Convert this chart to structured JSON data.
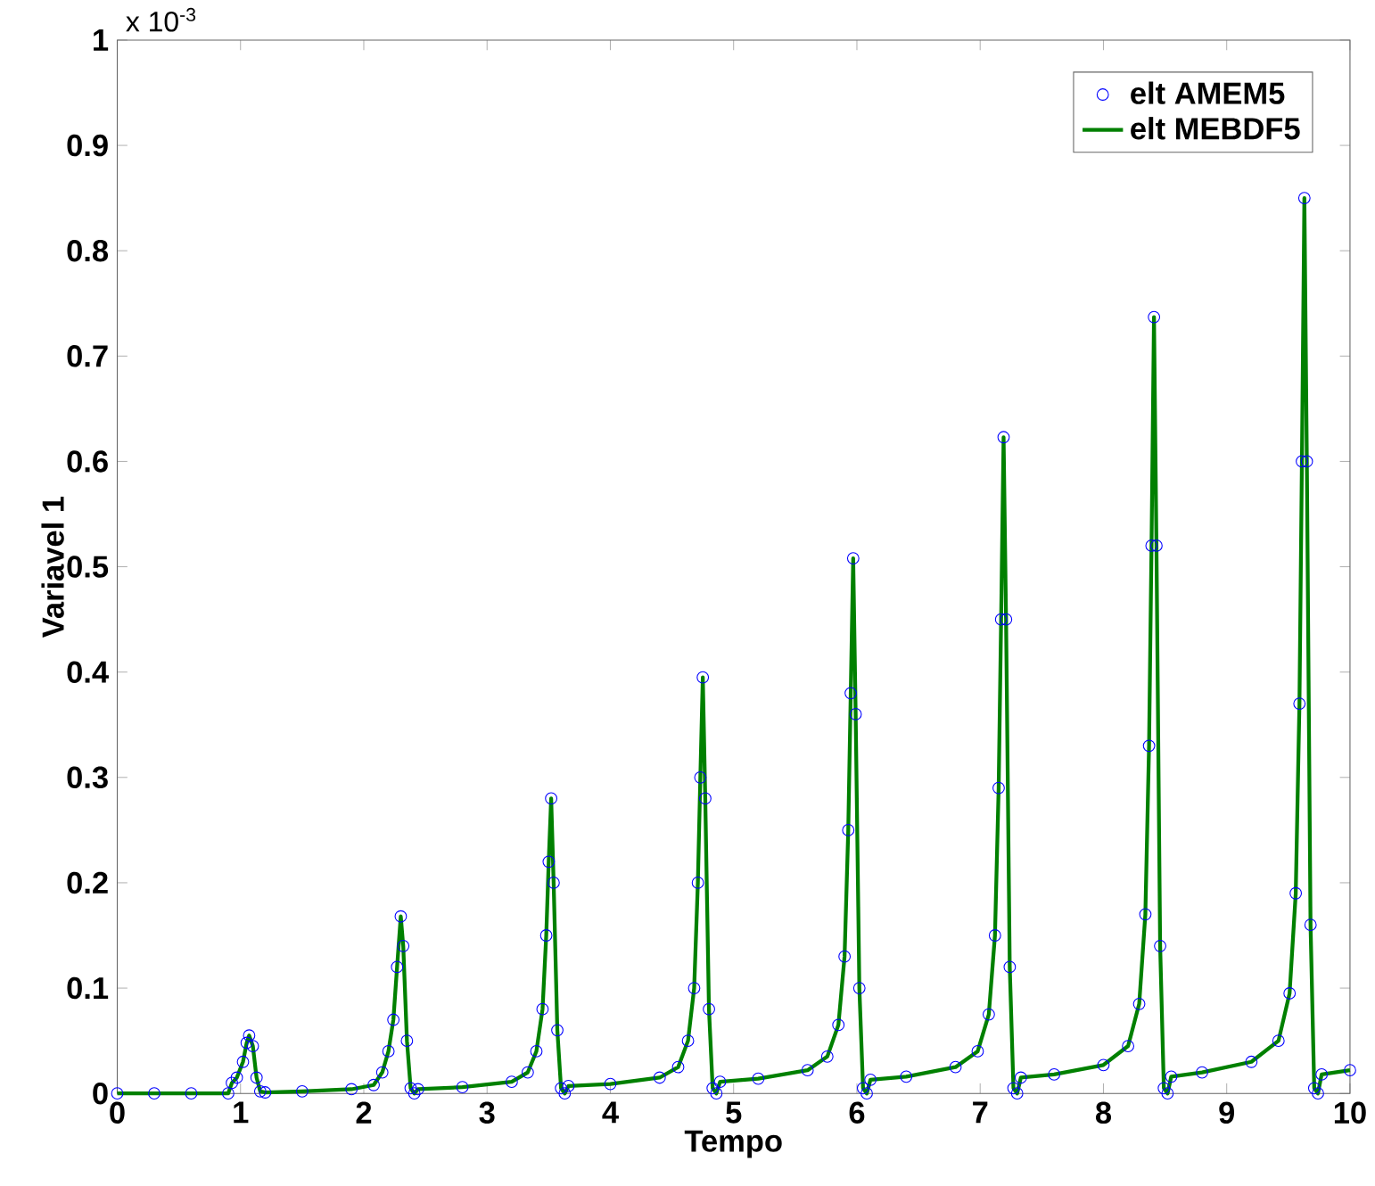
{
  "chart_data": {
    "type": "line",
    "xlabel": "Tempo",
    "ylabel": "Variavel 1",
    "annotations": [
      "x 10$^{-3}$"
    ],
    "xlim": [
      0,
      10
    ],
    "xticks": [
      0,
      1,
      2,
      3,
      4,
      5,
      6,
      7,
      8,
      9,
      10
    ],
    "ylim": [
      0,
      1
    ],
    "yticks": [
      0,
      0.1,
      0.2,
      0.3,
      0.4,
      0.5,
      0.6,
      0.7,
      0.8,
      0.9,
      1
    ],
    "legend": "top right",
    "grid": false,
    "x": [
      0,
      0.3,
      0.6,
      0.9,
      0.93,
      0.97,
      1.02,
      1.05,
      1.07,
      1.1,
      1.13,
      1.16,
      1.2,
      1.5,
      1.9,
      2.08,
      2.15,
      2.2,
      2.24,
      2.27,
      2.3,
      2.32,
      2.35,
      2.38,
      2.41,
      2.44,
      2.8,
      3.2,
      3.33,
      3.4,
      3.45,
      3.48,
      3.5,
      3.52,
      3.54,
      3.57,
      3.6,
      3.63,
      3.66,
      4.0,
      4.4,
      4.55,
      4.63,
      4.68,
      4.71,
      4.73,
      4.75,
      4.77,
      4.8,
      4.83,
      4.86,
      4.89,
      5.2,
      5.6,
      5.76,
      5.85,
      5.9,
      5.93,
      5.95,
      5.97,
      5.99,
      6.02,
      6.05,
      6.08,
      6.11,
      6.4,
      6.8,
      6.98,
      7.07,
      7.12,
      7.15,
      7.17,
      7.19,
      7.21,
      7.24,
      7.27,
      7.3,
      7.33,
      7.6,
      8.0,
      8.2,
      8.29,
      8.34,
      8.37,
      8.39,
      8.41,
      8.43,
      8.46,
      8.49,
      8.52,
      8.55,
      8.8,
      9.2,
      9.42,
      9.51,
      9.56,
      9.59,
      9.61,
      9.63,
      9.65,
      9.68,
      9.71,
      9.74,
      9.77,
      10
    ],
    "series": [
      {
        "name": "elt AMEM5",
        "type": "scatter",
        "marker": "circle",
        "color": "#0000ff",
        "values": [
          0,
          0,
          0,
          0,
          0.01,
          0.015,
          0.03,
          0.048,
          0.055,
          0.045,
          0.015,
          0.002,
          0.001,
          0.002,
          0.004,
          0.008,
          0.02,
          0.04,
          0.07,
          0.12,
          0.168,
          0.14,
          0.05,
          0.005,
          0,
          0.004,
          0.006,
          0.011,
          0.02,
          0.04,
          0.08,
          0.15,
          0.22,
          0.28,
          0.2,
          0.06,
          0.005,
          0,
          0.007,
          0.009,
          0.015,
          0.025,
          0.05,
          0.1,
          0.2,
          0.3,
          0.395,
          0.28,
          0.08,
          0.005,
          0,
          0.011,
          0.014,
          0.022,
          0.035,
          0.065,
          0.13,
          0.25,
          0.38,
          0.508,
          0.36,
          0.1,
          0.005,
          0,
          0.013,
          0.016,
          0.025,
          0.04,
          0.075,
          0.15,
          0.29,
          0.45,
          0.623,
          0.45,
          0.12,
          0.005,
          0,
          0.015,
          0.018,
          0.027,
          0.045,
          0.085,
          0.17,
          0.33,
          0.52,
          0.737,
          0.52,
          0.14,
          0.005,
          0,
          0.016,
          0.02,
          0.03,
          0.05,
          0.095,
          0.19,
          0.37,
          0.6,
          0.85,
          0.6,
          0.16,
          0.005,
          0,
          0.018,
          0.022
        ]
      },
      {
        "name": "elt MEBDF5",
        "color": "#008000",
        "values": [
          0,
          0,
          0,
          0,
          0.01,
          0.015,
          0.03,
          0.048,
          0.055,
          0.045,
          0.015,
          0.002,
          0.001,
          0.002,
          0.004,
          0.008,
          0.02,
          0.04,
          0.07,
          0.12,
          0.168,
          0.14,
          0.05,
          0.005,
          0,
          0.004,
          0.006,
          0.011,
          0.02,
          0.04,
          0.08,
          0.15,
          0.22,
          0.28,
          0.2,
          0.06,
          0.005,
          0,
          0.007,
          0.009,
          0.015,
          0.025,
          0.05,
          0.1,
          0.2,
          0.3,
          0.395,
          0.28,
          0.08,
          0.005,
          0,
          0.011,
          0.014,
          0.022,
          0.035,
          0.065,
          0.13,
          0.25,
          0.38,
          0.508,
          0.36,
          0.1,
          0.005,
          0,
          0.013,
          0.016,
          0.025,
          0.04,
          0.075,
          0.15,
          0.29,
          0.45,
          0.623,
          0.45,
          0.12,
          0.005,
          0,
          0.015,
          0.018,
          0.027,
          0.045,
          0.085,
          0.17,
          0.33,
          0.52,
          0.737,
          0.52,
          0.14,
          0.005,
          0,
          0.016,
          0.02,
          0.03,
          0.05,
          0.095,
          0.19,
          0.37,
          0.6,
          0.85,
          0.6,
          0.16,
          0.005,
          0,
          0.018,
          0.022
        ]
      }
    ]
  }
}
